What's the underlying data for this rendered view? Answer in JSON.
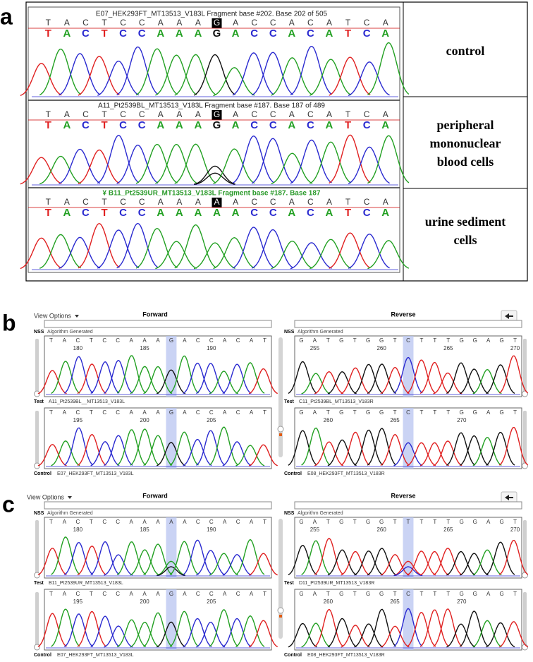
{
  "panel_a": {
    "label": "a",
    "traces": [
      {
        "title": "E07_HEK293FT_MT13513_V183L Fragment base #202. Base 202 of 505",
        "calls": [
          "T",
          "A",
          "C",
          "T",
          "C",
          "C",
          "A",
          "A",
          "A",
          "G",
          "A",
          "C",
          "C",
          "A",
          "C",
          "A",
          "T",
          "C",
          "A"
        ],
        "bases": [
          "T",
          "A",
          "C",
          "T",
          "C",
          "C",
          "A",
          "A",
          "A",
          "G",
          "A",
          "C",
          "C",
          "A",
          "C",
          "A",
          "T",
          "C",
          "A"
        ],
        "condition": "control"
      },
      {
        "title": "A11_Pt2539BL_MT13513_V183L Fragment base #187. Base 187 of 489",
        "calls": [
          "T",
          "A",
          "C",
          "T",
          "C",
          "C",
          "A",
          "A",
          "A",
          "G",
          "A",
          "C",
          "C",
          "A",
          "C",
          "A",
          "T",
          "C",
          "A"
        ],
        "bases": [
          "T",
          "A",
          "C",
          "T",
          "C",
          "C",
          "A",
          "A",
          "A",
          "G",
          "A",
          "C",
          "C",
          "A",
          "C",
          "A",
          "T",
          "C",
          "A"
        ],
        "condition": "peripheral mononuclear blood cells"
      },
      {
        "title": "¥ B11_Pt2539UR_MT13513_V183L Fragment base #187. Base 187",
        "calls": [
          "T",
          "A",
          "C",
          "T",
          "C",
          "C",
          "A",
          "A",
          "A",
          "A",
          "A",
          "C",
          "C",
          "A",
          "C",
          "A",
          "T",
          "C",
          "A"
        ],
        "bases": [
          "T",
          "A",
          "C",
          "T",
          "C",
          "C",
          "A",
          "A",
          "A",
          "A",
          "A",
          "C",
          "C",
          "A",
          "C",
          "A",
          "T",
          "C",
          "A"
        ],
        "condition": "urine sediment cells"
      }
    ]
  },
  "panel_b": {
    "label": "b",
    "view_options": "View Options",
    "directions": [
      {
        "heading": "Forward",
        "nss": "NSS",
        "nss_note": "Algorithm Generated",
        "test": {
          "tag": "Test",
          "sample": "A11_Pt2539BL__MT13513_V183L",
          "bases": [
            "T",
            "A",
            "C",
            "T",
            "C",
            "C",
            "A",
            "A",
            "A",
            "G",
            "A",
            "C",
            "C",
            "A",
            "C",
            "A",
            "T"
          ],
          "positions": [
            180,
            185,
            190
          ]
        },
        "control": {
          "tag": "Control",
          "sample": "E07_HEK293FT_MT13513_V183L",
          "bases": [
            "T",
            "A",
            "C",
            "T",
            "C",
            "C",
            "A",
            "A",
            "A",
            "G",
            "A",
            "C",
            "C",
            "A",
            "C",
            "A",
            "T"
          ],
          "positions": [
            195,
            200,
            205
          ]
        }
      },
      {
        "heading": "Reverse",
        "nss": "NSS",
        "nss_note": "Algorithm Generated",
        "test": {
          "tag": "Test",
          "sample": "C11_Pt2539BL_MT13513_V183R",
          "bases": [
            "G",
            "A",
            "T",
            "G",
            "T",
            "G",
            "G",
            "T",
            "C",
            "T",
            "T",
            "T",
            "G",
            "G",
            "A",
            "G",
            "T"
          ],
          "positions": [
            255,
            260,
            265,
            270
          ]
        },
        "control": {
          "tag": "Control",
          "sample": "E08_HEK293FT_MT13513_V183R",
          "bases": [
            "G",
            "A",
            "T",
            "G",
            "T",
            "G",
            "G",
            "T",
            "C",
            "T",
            "T",
            "T",
            "G",
            "G",
            "A",
            "G",
            "T"
          ],
          "positions": [
            260,
            265,
            270
          ]
        }
      }
    ]
  },
  "panel_c": {
    "label": "c",
    "view_options": "View Options",
    "directions": [
      {
        "heading": "Forward",
        "nss": "NSS",
        "nss_note": "Algorithm Generated",
        "test": {
          "tag": "Test",
          "sample": "B11_Pt2539UR_MT13513_V183L",
          "bases": [
            "T",
            "A",
            "C",
            "T",
            "C",
            "C",
            "A",
            "A",
            "A",
            "A",
            "A",
            "C",
            "C",
            "A",
            "C",
            "A",
            "T"
          ],
          "positions": [
            180,
            185,
            190
          ]
        },
        "control": {
          "tag": "Control",
          "sample": "E07_HEK293FT_MT13513_V183L",
          "bases": [
            "T",
            "A",
            "C",
            "T",
            "C",
            "C",
            "A",
            "A",
            "A",
            "G",
            "A",
            "C",
            "C",
            "A",
            "C",
            "A",
            "T"
          ],
          "positions": [
            195,
            200,
            205
          ]
        }
      },
      {
        "heading": "Reverse",
        "nss": "NSS",
        "nss_note": "Algorithm Generated",
        "test": {
          "tag": "Test",
          "sample": "D11_Pt2539UR_MT13513_V183R",
          "bases": [
            "G",
            "A",
            "T",
            "G",
            "T",
            "G",
            "G",
            "T",
            "T",
            "T",
            "T",
            "T",
            "G",
            "G",
            "A",
            "G",
            "T"
          ],
          "positions": [
            255,
            260,
            265,
            270
          ]
        },
        "control": {
          "tag": "Control",
          "sample": "E08_HEK293FT_MT13513_V183R",
          "bases": [
            "G",
            "A",
            "T",
            "G",
            "T",
            "G",
            "G",
            "T",
            "C",
            "T",
            "T",
            "T",
            "G",
            "G",
            "A",
            "G",
            "T"
          ],
          "positions": [
            260,
            265,
            270
          ]
        }
      }
    ]
  }
}
